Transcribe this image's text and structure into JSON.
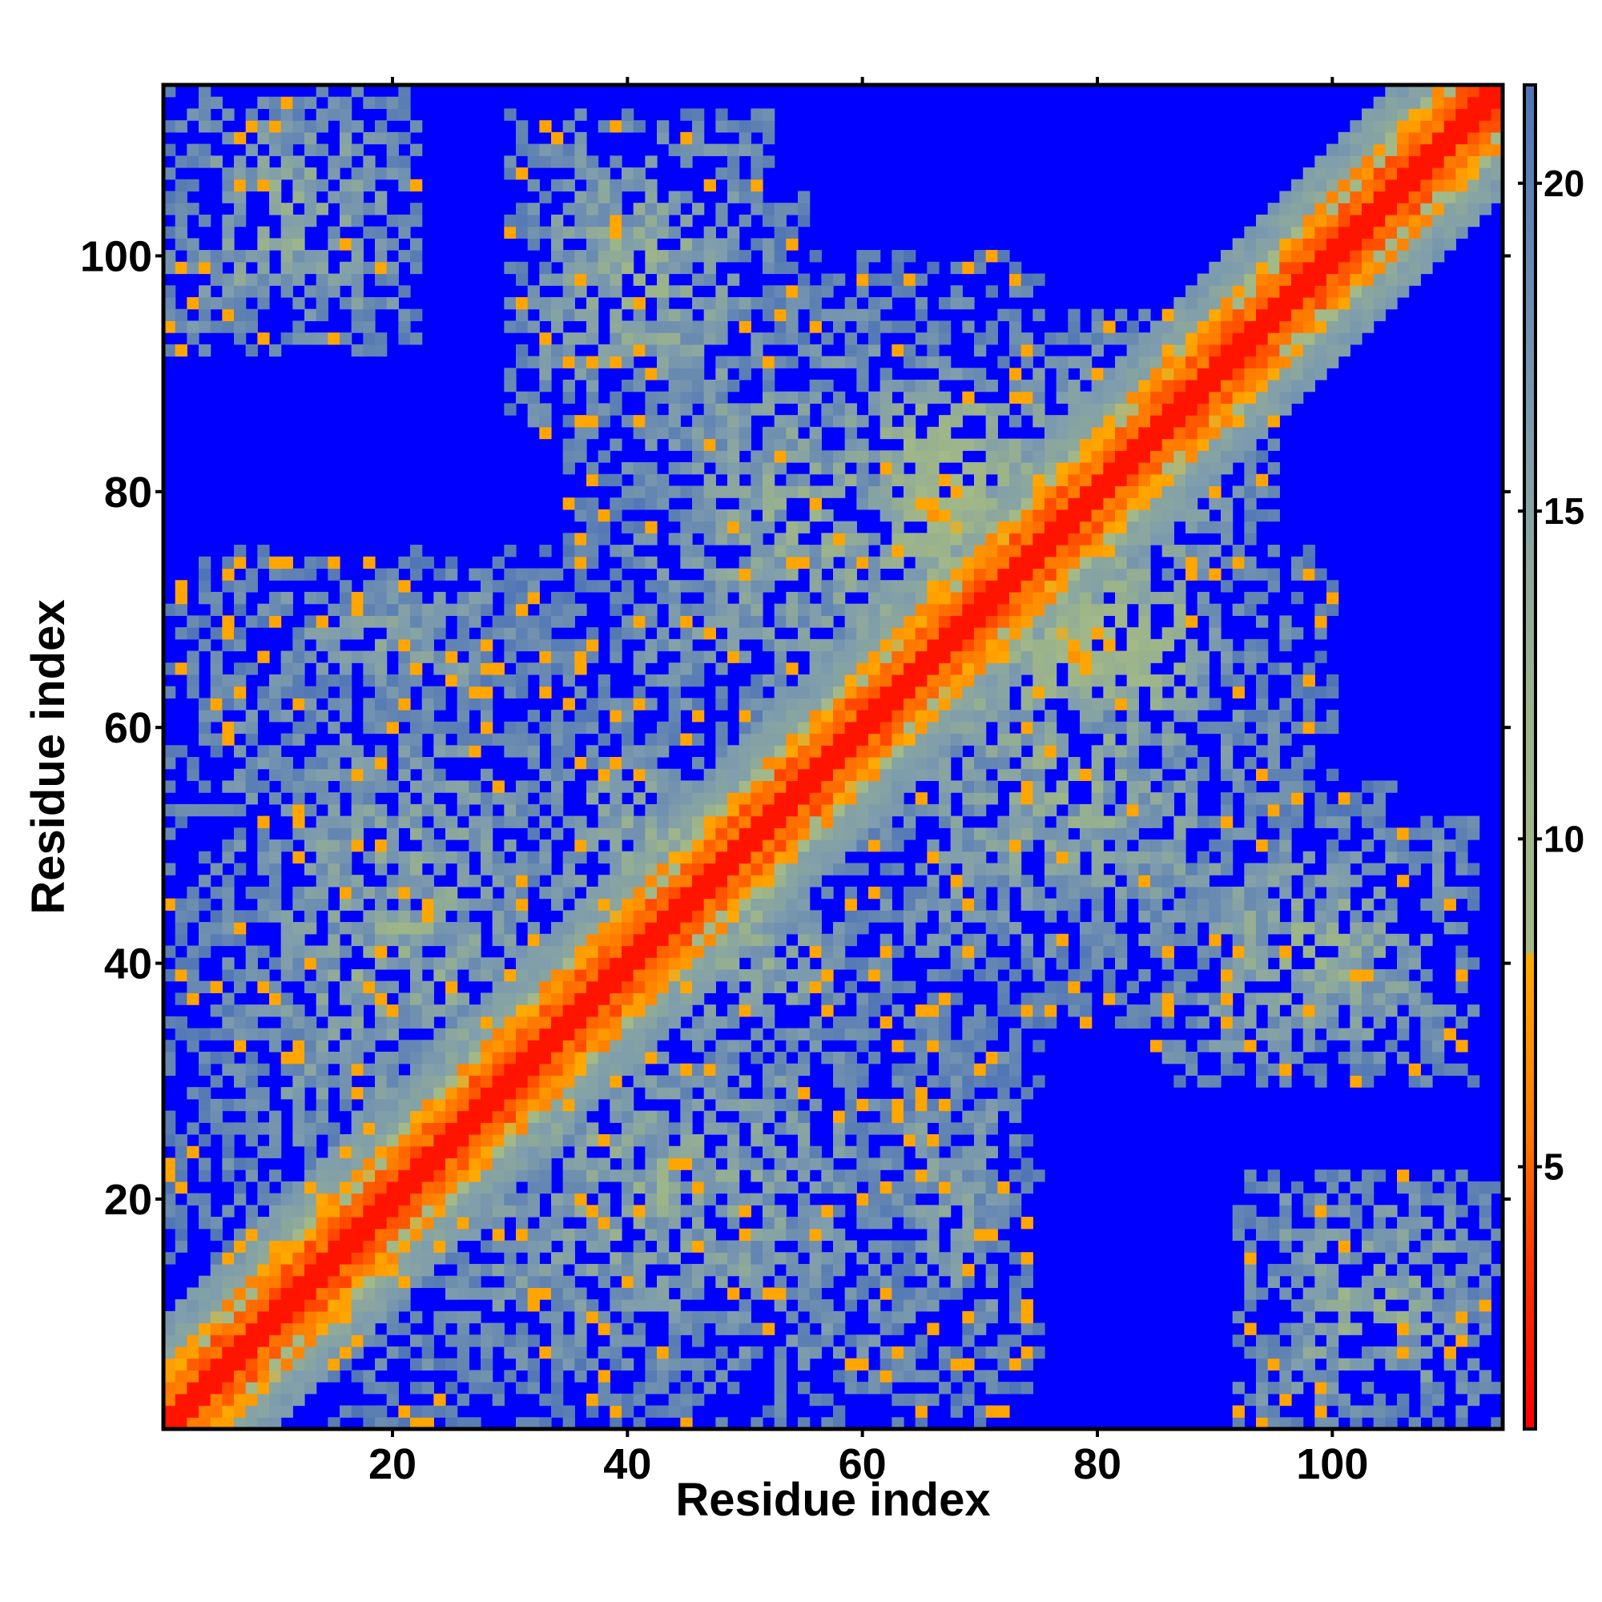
{
  "chart_data": {
    "type": "heatmap",
    "title": "",
    "xlabel": "Residue index",
    "ylabel": "Residue index",
    "n_residues": 114,
    "xlim": [
      1,
      114
    ],
    "ylim": [
      1,
      114
    ],
    "x_ticks": [
      20,
      40,
      60,
      80,
      100
    ],
    "y_ticks": [
      20,
      40,
      60,
      80,
      100
    ],
    "colorbar": {
      "range": [
        1,
        21.5
      ],
      "ticks": [
        5,
        10,
        15,
        20
      ],
      "stops": [
        {
          "value": 1.0,
          "color": "#ff0000"
        },
        {
          "value": 3.5,
          "color": "#ff3300"
        },
        {
          "value": 5.5,
          "color": "#ff7700"
        },
        {
          "value": 8.2,
          "color": "#ffaa00"
        },
        {
          "value": 8.3,
          "color": "#a3b988"
        },
        {
          "value": 12.0,
          "color": "#9cb48a"
        },
        {
          "value": 16.0,
          "color": "#7f9dac"
        },
        {
          "value": 21.5,
          "color": "#4f74b6"
        }
      ],
      "above_cutoff_color": "#0000ff",
      "cutoff": 21.5
    },
    "contact_blocks": [
      {
        "x": [
          1,
          22
        ],
        "y": [
          93,
          114
        ],
        "value": 13
      },
      {
        "x": [
          30,
          52
        ],
        "y": [
          85,
          112
        ],
        "value": 13
      },
      {
        "x": [
          92,
          114
        ],
        "y": [
          1,
          22
        ],
        "value": 13
      },
      {
        "x": [
          85,
          112
        ],
        "y": [
          30,
          52
        ],
        "value": 13
      },
      {
        "x": [
          1,
          40
        ],
        "y": [
          15,
          70
        ],
        "value": 14
      },
      {
        "x": [
          15,
          70
        ],
        "y": [
          1,
          40
        ],
        "value": 14
      },
      {
        "x": [
          35,
          75
        ],
        "y": [
          55,
          100
        ],
        "value": 14
      },
      {
        "x": [
          55,
          100
        ],
        "y": [
          35,
          75
        ],
        "value": 14
      },
      {
        "x": [
          60,
          90
        ],
        "y": [
          60,
          95
        ],
        "value": 13
      },
      {
        "x": [
          60,
          95
        ],
        "y": [
          60,
          90
        ],
        "value": 13
      },
      {
        "x": [
          62,
          72
        ],
        "y": [
          70,
          88
        ],
        "value": 8
      },
      {
        "x": [
          70,
          88
        ],
        "y": [
          62,
          72
        ],
        "value": 8
      },
      {
        "x": [
          40,
          60
        ],
        "y": [
          30,
          60
        ],
        "value": 13
      },
      {
        "x": [
          30,
          60
        ],
        "y": [
          40,
          60
        ],
        "value": 13
      },
      {
        "x": [
          85,
          105
        ],
        "y": [
          30,
          55
        ],
        "value": 14
      },
      {
        "x": [
          30,
          55
        ],
        "y": [
          85,
          105
        ],
        "value": 14
      },
      {
        "x": [
          60,
          75
        ],
        "y": [
          1,
          40
        ],
        "value": 15
      },
      {
        "x": [
          1,
          40
        ],
        "y": [
          60,
          75
        ],
        "value": 15
      }
    ],
    "seed": 7
  }
}
